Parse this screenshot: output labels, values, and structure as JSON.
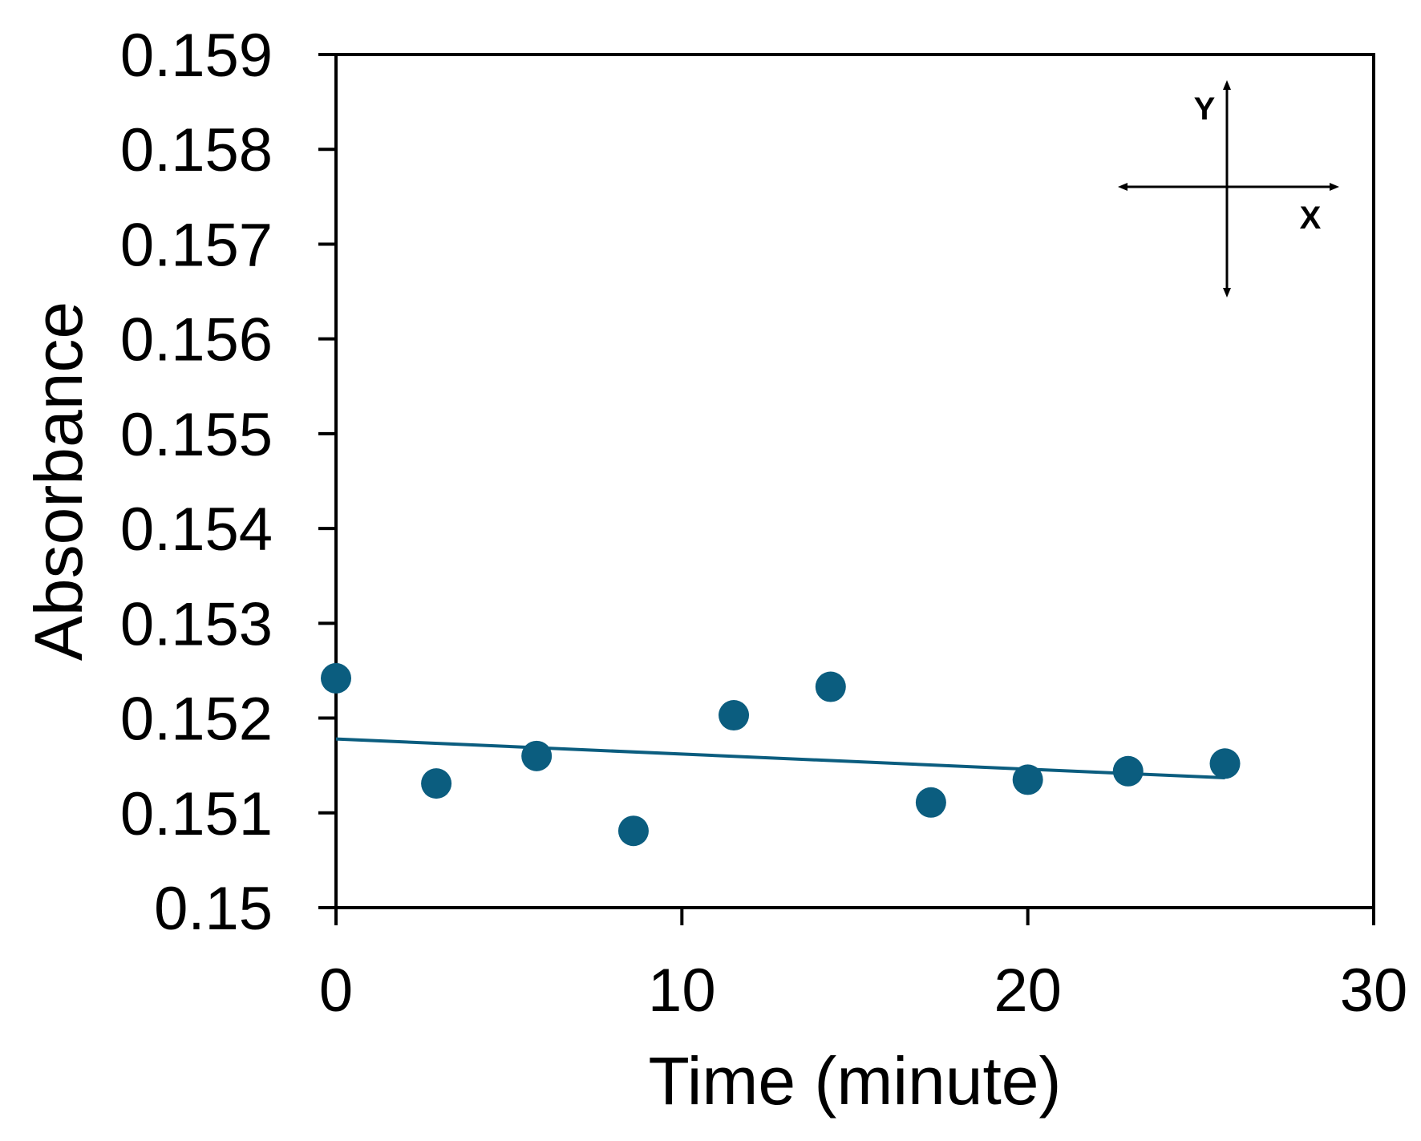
{
  "chart_data": {
    "type": "scatter",
    "title": "",
    "xlabel": "Time (minute)",
    "ylabel": "Absorbance",
    "xlim": [
      0,
      30
    ],
    "ylim": [
      0.15,
      0.159
    ],
    "x_ticks": [
      0,
      10,
      20,
      30
    ],
    "x_tick_labels": [
      "0",
      "10",
      "20",
      "30"
    ],
    "y_ticks": [
      0.15,
      0.151,
      0.152,
      0.153,
      0.154,
      0.155,
      0.156,
      0.157,
      0.158,
      0.159
    ],
    "y_tick_labels": [
      "0.15",
      "0.151",
      "0.152",
      "0.153",
      "0.154",
      "0.155",
      "0.156",
      "0.157",
      "0.158",
      "0.159"
    ],
    "grid": false,
    "legend": "none",
    "series": [
      {
        "type": "scatter",
        "color": "#0b5d7f",
        "x": [
          0,
          2.9,
          5.8,
          8.6,
          11.5,
          14.3,
          17.2,
          20.0,
          22.9,
          25.7
        ],
        "y": [
          0.15242,
          0.15131,
          0.1516,
          0.15081,
          0.15203,
          0.15233,
          0.15111,
          0.15135,
          0.15144,
          0.15152
        ]
      },
      {
        "type": "line",
        "color": "#0b5d7f",
        "x": [
          0,
          25.7
        ],
        "y": [
          0.15178,
          0.15137
        ]
      }
    ],
    "inset": {
      "axis_x_label": "X",
      "axis_y_label": "Y"
    }
  }
}
